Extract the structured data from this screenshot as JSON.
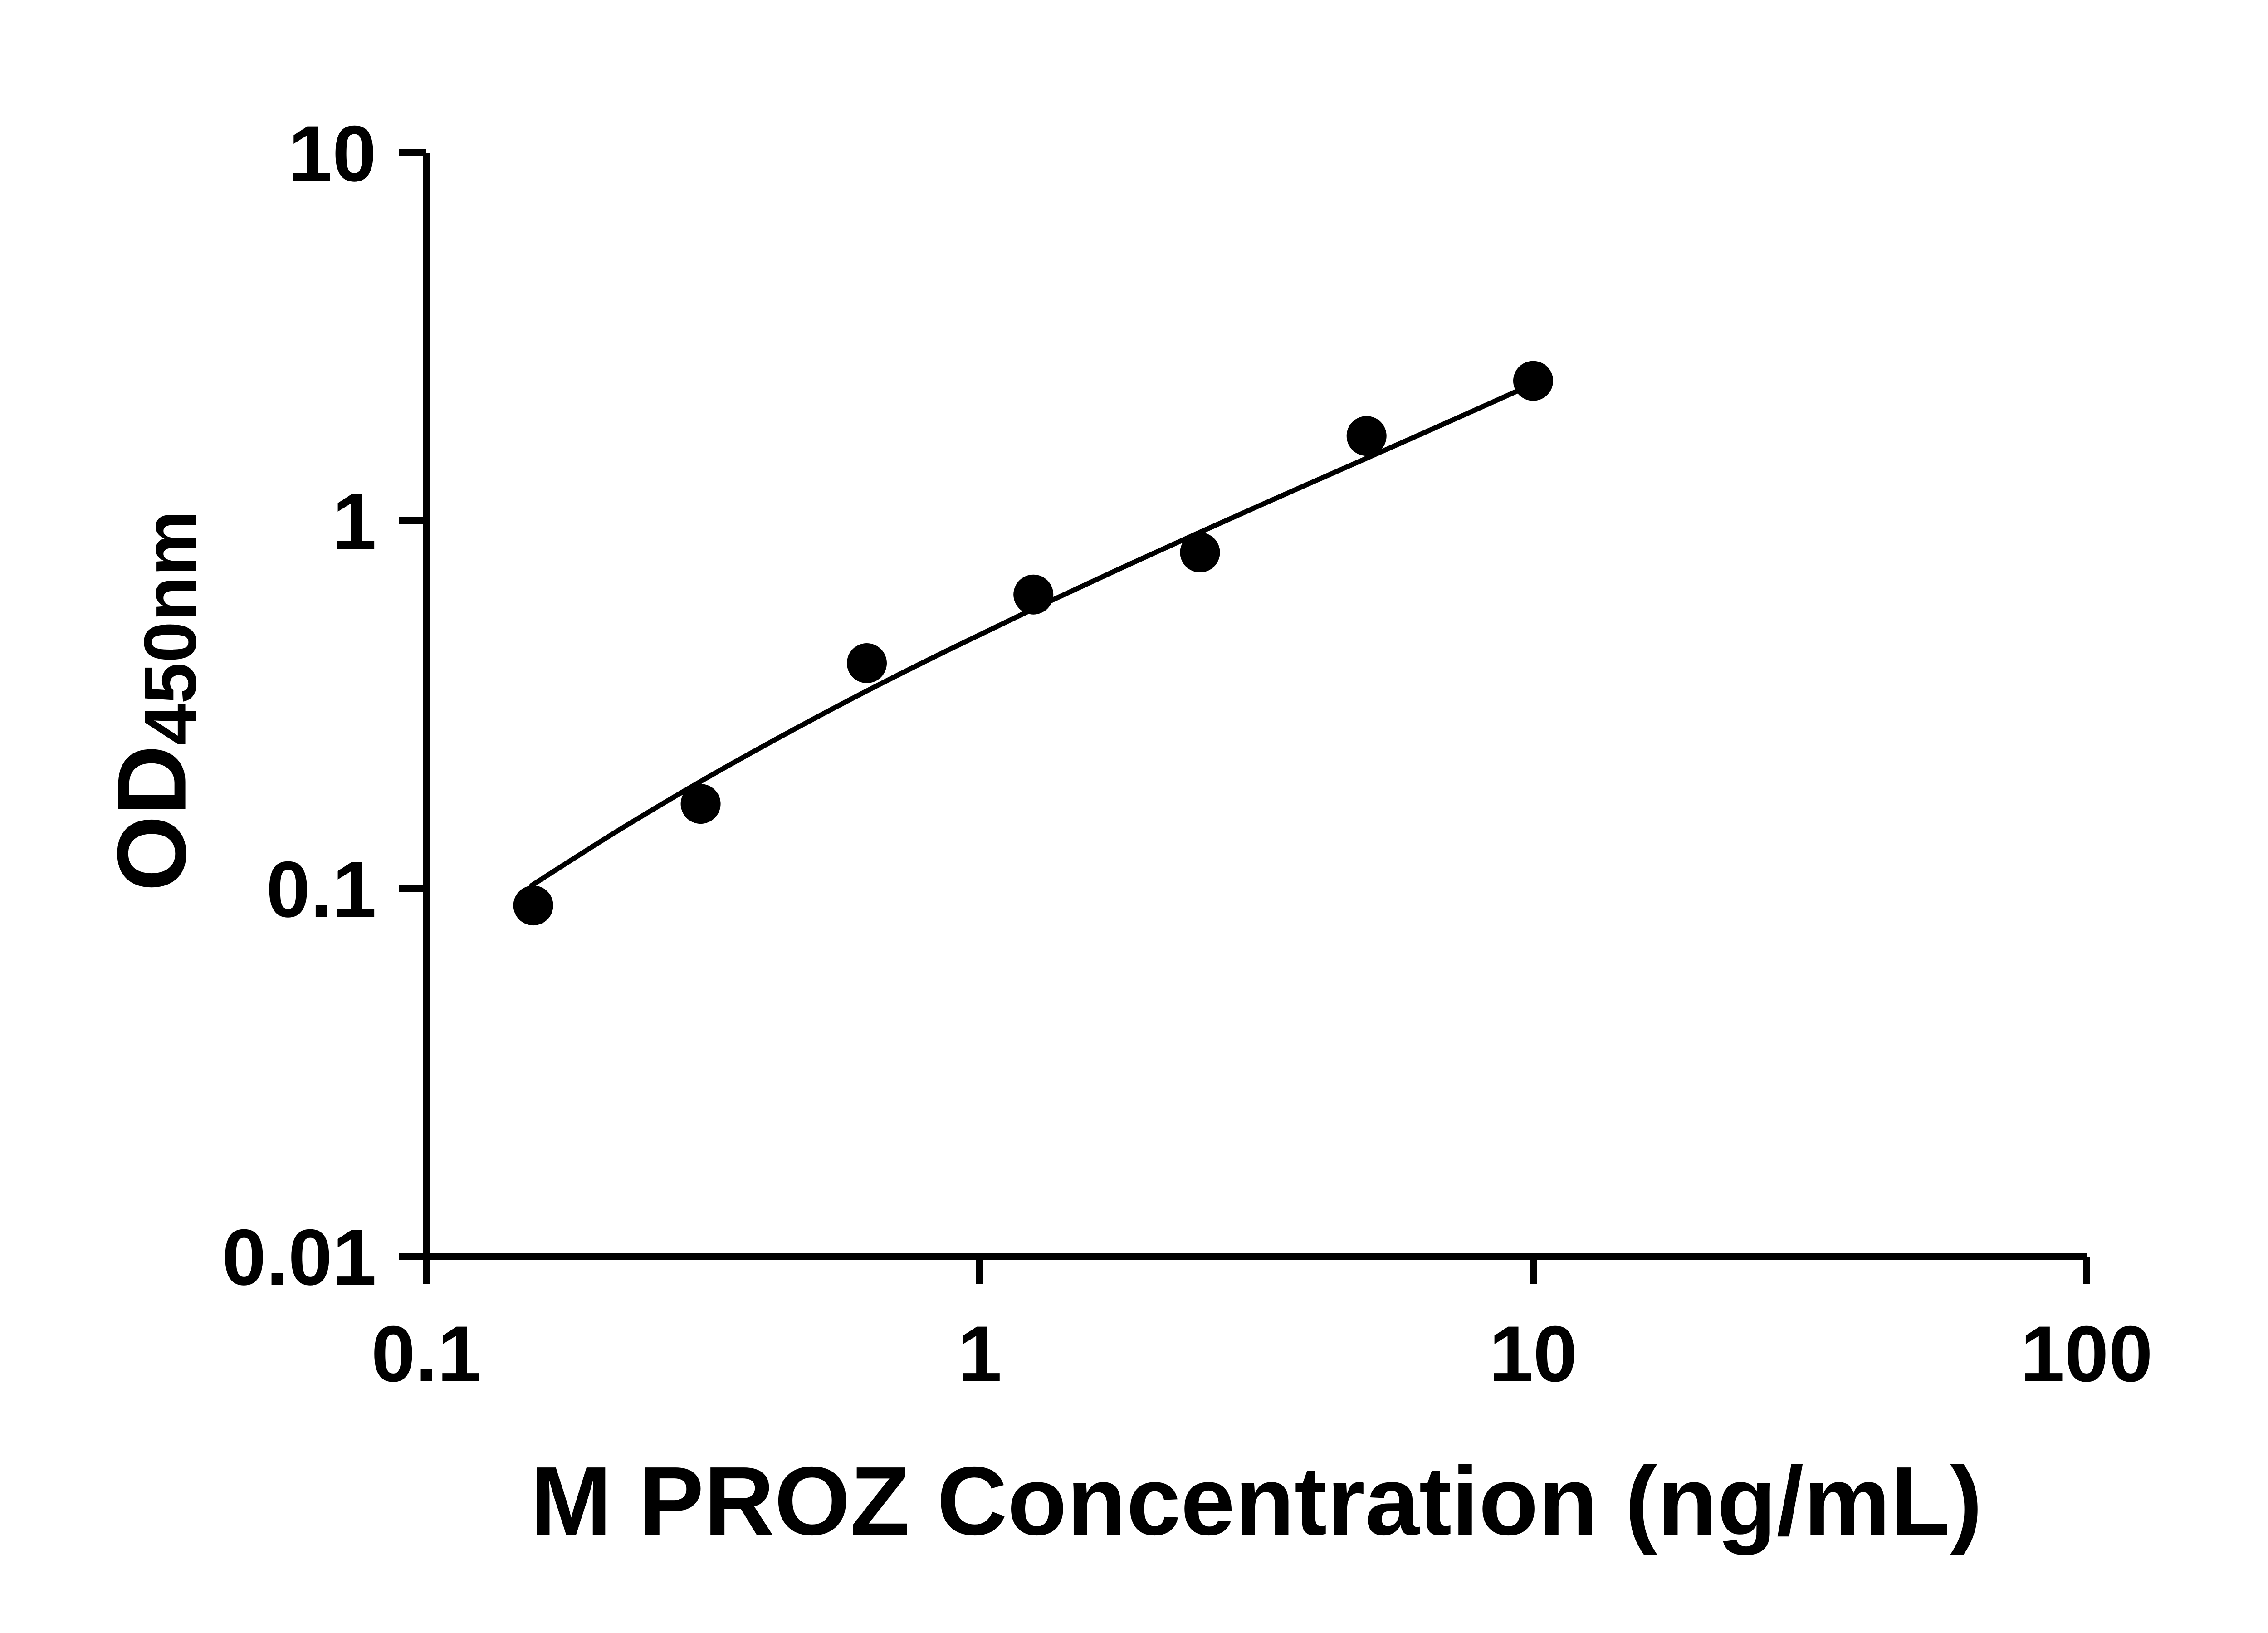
{
  "figure": {
    "background": "#ffffff",
    "ink": "#000000"
  },
  "chart_data": {
    "type": "scatter",
    "subtype": "log-log ELISA standard curve with fitted line",
    "title": "",
    "xlabel": "M PROZ Concentration (ng/mL)",
    "ylabel_main": "OD",
    "ylabel_sub": "450nm",
    "x_scale": "log",
    "y_scale": "log",
    "xlim": [
      0.1,
      100
    ],
    "ylim": [
      0.01,
      10
    ],
    "grid": false,
    "legend": false,
    "x_ticks": [
      {
        "v": 0.1,
        "label": "0.1"
      },
      {
        "v": 1,
        "label": "1"
      },
      {
        "v": 10,
        "label": "10"
      },
      {
        "v": 100,
        "label": "100"
      }
    ],
    "y_ticks": [
      {
        "v": 0.01,
        "label": "0.01"
      },
      {
        "v": 0.1,
        "label": "0.1"
      },
      {
        "v": 1,
        "label": "1"
      },
      {
        "v": 10,
        "label": "10"
      }
    ],
    "points": [
      {
        "x": 0.156,
        "y": 0.09
      },
      {
        "x": 0.313,
        "y": 0.17
      },
      {
        "x": 0.625,
        "y": 0.41
      },
      {
        "x": 1.25,
        "y": 0.63
      },
      {
        "x": 2.5,
        "y": 0.82
      },
      {
        "x": 5,
        "y": 1.7
      },
      {
        "x": 10,
        "y": 2.4
      }
    ],
    "fit_curve": [
      [
        0.155,
        0.102
      ],
      [
        0.219,
        0.142
      ],
      [
        0.31,
        0.194
      ],
      [
        0.439,
        0.26
      ],
      [
        0.621,
        0.343
      ],
      [
        0.879,
        0.446
      ],
      [
        1.244,
        0.574
      ],
      [
        1.761,
        0.732
      ],
      [
        2.494,
        0.929
      ],
      [
        3.528,
        1.173
      ],
      [
        4.992,
        1.477
      ],
      [
        7.065,
        1.863
      ],
      [
        10.0,
        2.355
      ]
    ]
  }
}
